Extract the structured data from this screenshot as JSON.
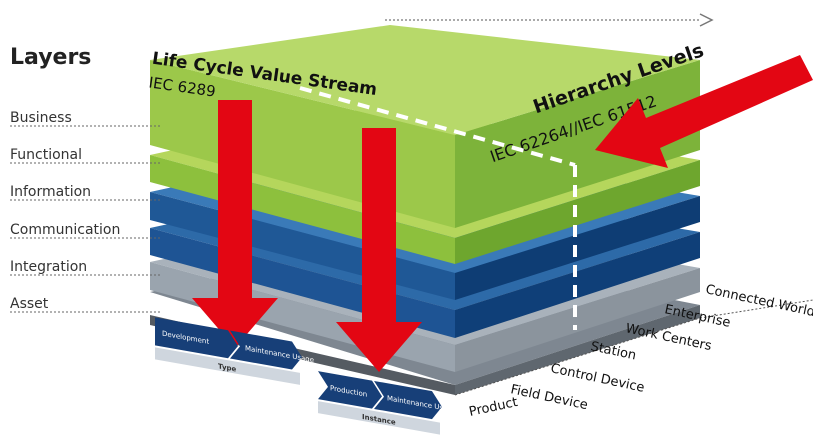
{
  "layers_title": "Layers",
  "layers": [
    "Business",
    "Functional",
    "Information",
    "Communication",
    "Integration",
    "Asset"
  ],
  "life_cycle": {
    "title": "Life Cycle Value Stream",
    "standard": "IEC 6289"
  },
  "hierarchy": {
    "title": "Hierarchy Levels",
    "standard": "IEC 62264//IEC 61512",
    "levels": [
      "Product",
      "Field Device",
      "Control Device",
      "Station",
      "Work Centers",
      "Enterprise",
      "Connected World"
    ]
  },
  "life_cycle_stages": {
    "type_group": {
      "items": [
        "Development",
        "Maintenance Usage"
      ],
      "label": "Type"
    },
    "instance_group": {
      "items": [
        "Production",
        "Maintenance Usage"
      ],
      "label": "Instance"
    }
  },
  "colors": {
    "green_light": "#a7cf4a",
    "green_dark": "#7cb338",
    "blue_dark": "#0d3f78",
    "blue_mid": "#1e5d9e",
    "grey": "#9aa4b0",
    "grey_dark": "#666e78",
    "arrow_red": "#e30613",
    "chevron": "#173f78"
  }
}
